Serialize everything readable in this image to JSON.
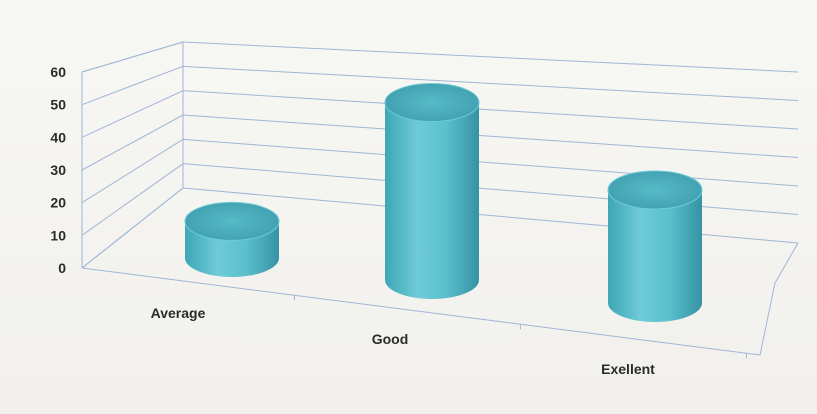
{
  "chart_data": {
    "type": "bar",
    "style": "3d-cylinder",
    "categories": [
      "Average",
      "Good",
      "Exellent"
    ],
    "values": [
      12,
      58,
      35
    ],
    "ylim": [
      0,
      60
    ],
    "yticks": [
      "0",
      "10",
      "20",
      "30",
      "40",
      "50",
      "60"
    ],
    "title": "",
    "xlabel": "",
    "ylabel": "",
    "grid": true,
    "legend": "none",
    "colors": {
      "bar": "#5bbfcc",
      "bar_dark": "#3a9fb0",
      "bar_light": "#8fd8e2",
      "grid": "#9fb6d6",
      "axis": "#8a9bb5"
    }
  }
}
